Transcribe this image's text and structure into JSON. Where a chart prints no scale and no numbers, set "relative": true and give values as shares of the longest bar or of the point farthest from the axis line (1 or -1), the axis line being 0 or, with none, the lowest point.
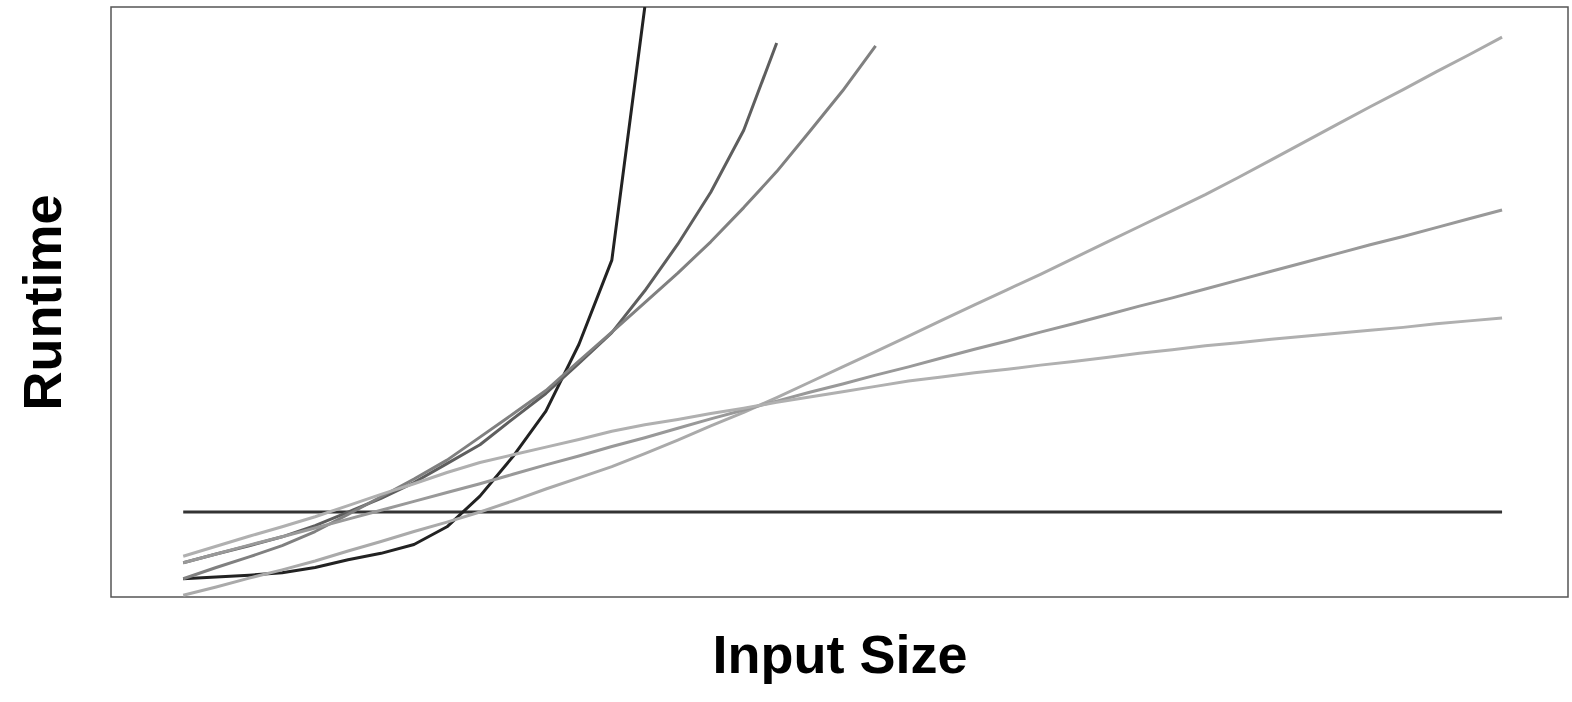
{
  "chart_data": {
    "type": "line",
    "xlabel": "Input Size",
    "ylabel": "Runtime",
    "relative": true,
    "marker": "none",
    "line_style": "solid",
    "categories": [
      null,
      null,
      null,
      null,
      null,
      null,
      null,
      null,
      null,
      null,
      null,
      null,
      null,
      null,
      null,
      null,
      null,
      null,
      null,
      null,
      null,
      null,
      null,
      null,
      null,
      null,
      null,
      null,
      null,
      null,
      null,
      null,
      null,
      null,
      null,
      null,
      null,
      null,
      null,
      null,
      null
    ],
    "series": [
      {
        "color": "#333333",
        "values": [
          0.144,
          0.144,
          0.144,
          0.144,
          0.144,
          0.144,
          0.144,
          0.144,
          0.144,
          0.144,
          0.144,
          0.144,
          0.144,
          0.144,
          0.144,
          0.144,
          0.144,
          0.144,
          0.144,
          0.144,
          0.144,
          0.144,
          0.144,
          0.144,
          0.144,
          0.144,
          0.144,
          0.144,
          0.144,
          0.144,
          0.144,
          0.144,
          0.144,
          0.144,
          0.144,
          0.144,
          0.144,
          0.144,
          0.144,
          0.144,
          0.144
        ]
      },
      {
        "color": "#222222",
        "values": [
          0.031,
          0.034,
          0.037,
          0.041,
          0.05,
          0.063,
          0.074,
          0.089,
          0.119,
          0.171,
          0.238,
          0.315,
          0.428,
          0.571,
          1.0,
          null,
          null,
          null,
          null,
          null,
          null,
          null,
          null,
          null,
          null,
          null,
          null,
          null,
          null,
          null,
          null,
          null,
          null,
          null,
          null,
          null,
          null,
          null,
          null,
          null,
          null
        ]
      },
      {
        "color": "#5e5e5e",
        "values": [
          0.058,
          0.073,
          0.087,
          0.102,
          0.121,
          0.144,
          0.167,
          0.194,
          0.226,
          0.258,
          0.302,
          0.345,
          0.396,
          0.448,
          0.519,
          0.598,
          0.686,
          0.791,
          0.939,
          null,
          null,
          null,
          null,
          null,
          null,
          null,
          null,
          null,
          null,
          null,
          null,
          null,
          null,
          null,
          null,
          null,
          null,
          null,
          null,
          null,
          null
        ]
      },
      {
        "color": "#808080",
        "values": [
          0.031,
          0.05,
          0.068,
          0.087,
          0.111,
          0.14,
          0.17,
          0.2,
          0.232,
          0.271,
          0.31,
          0.35,
          0.4,
          0.449,
          0.499,
          0.549,
          0.602,
          0.66,
          0.721,
          0.789,
          0.858,
          0.934,
          null,
          null,
          null,
          null,
          null,
          null,
          null,
          null,
          null,
          null,
          null,
          null,
          null,
          null,
          null,
          null,
          null,
          null,
          null
        ]
      },
      {
        "color": "#aaaaaa",
        "values": [
          0.003,
          0.017,
          0.032,
          0.046,
          0.061,
          0.078,
          0.094,
          0.111,
          0.127,
          0.144,
          0.163,
          0.183,
          0.202,
          0.221,
          0.243,
          0.266,
          0.29,
          0.313,
          0.338,
          0.364,
          0.39,
          0.416,
          0.442,
          0.469,
          0.495,
          0.521,
          0.547,
          0.574,
          0.601,
          0.628,
          0.655,
          0.682,
          0.711,
          0.741,
          0.771,
          0.801,
          0.831,
          0.86,
          0.89,
          0.919,
          0.949
        ]
      },
      {
        "color": "#999999",
        "values": [
          0.058,
          0.073,
          0.088,
          0.102,
          0.117,
          0.132,
          0.147,
          0.162,
          0.177,
          0.192,
          0.208,
          0.224,
          0.239,
          0.255,
          0.27,
          0.286,
          0.302,
          0.317,
          0.332,
          0.347,
          0.361,
          0.376,
          0.39,
          0.405,
          0.42,
          0.434,
          0.449,
          0.463,
          0.478,
          0.493,
          0.507,
          0.522,
          0.537,
          0.552,
          0.567,
          0.582,
          0.597,
          0.611,
          0.626,
          0.641,
          0.656
        ]
      },
      {
        "color": "#b0b0b0",
        "values": [
          0.069,
          0.086,
          0.103,
          0.119,
          0.136,
          0.155,
          0.174,
          0.192,
          0.211,
          0.228,
          0.241,
          0.254,
          0.267,
          0.281,
          0.292,
          0.301,
          0.311,
          0.32,
          0.33,
          0.339,
          0.348,
          0.357,
          0.366,
          0.373,
          0.38,
          0.386,
          0.393,
          0.399,
          0.406,
          0.413,
          0.419,
          0.426,
          0.431,
          0.437,
          0.442,
          0.447,
          0.452,
          0.457,
          0.463,
          0.468,
          0.473
        ]
      }
    ]
  }
}
